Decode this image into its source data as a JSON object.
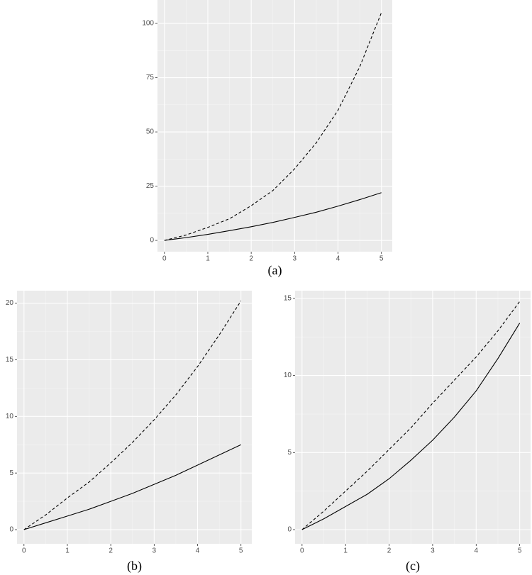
{
  "chart_data": [
    {
      "type": "line",
      "caption": "(a)",
      "x": [
        0,
        0.5,
        1,
        1.5,
        2,
        2.5,
        3,
        3.5,
        4,
        4.5,
        5
      ],
      "series": [
        {
          "color": "#000000",
          "linestyle": "dashed",
          "values": [
            0,
            2.5,
            6,
            10,
            16,
            23,
            33,
            45,
            60,
            80,
            105
          ]
        },
        {
          "color": "#000000",
          "linestyle": "solid",
          "values": [
            0,
            1.3,
            2.8,
            4.5,
            6.3,
            8.3,
            10.6,
            13,
            15.8,
            18.8,
            22
          ]
        }
      ],
      "xlim": [
        -0.16,
        5.25
      ],
      "xticks": [
        0,
        1,
        2,
        3,
        4,
        5
      ],
      "ylim": [
        -5.2,
        110.8
      ],
      "yticks": [
        0,
        25,
        50,
        75,
        100
      ],
      "grid": true
    },
    {
      "type": "line",
      "caption": "(b)",
      "x": [
        0,
        0.5,
        1,
        1.5,
        2,
        2.5,
        3,
        3.5,
        4,
        4.5,
        5
      ],
      "series": [
        {
          "color": "#000000",
          "linestyle": "dashed",
          "values": [
            0,
            1.3,
            2.8,
            4.2,
            5.9,
            7.7,
            9.7,
            11.9,
            14.4,
            17.2,
            20.2
          ]
        },
        {
          "color": "#000000",
          "linestyle": "solid",
          "values": [
            0,
            0.6,
            1.2,
            1.8,
            2.5,
            3.2,
            4.0,
            4.8,
            5.7,
            6.6,
            7.5
          ]
        }
      ],
      "xlim": [
        -0.16,
        5.25
      ],
      "xticks": [
        0,
        1,
        2,
        3,
        4,
        5
      ],
      "ylim": [
        -1.25,
        21.1
      ],
      "yticks": [
        0,
        5,
        10,
        15,
        20
      ],
      "grid": true
    },
    {
      "type": "line",
      "caption": "(c)",
      "x": [
        0,
        0.5,
        1,
        1.5,
        2,
        2.5,
        3,
        3.5,
        4,
        4.5,
        5
      ],
      "series": [
        {
          "color": "#000000",
          "linestyle": "dashed",
          "values": [
            0,
            1.2,
            2.5,
            3.8,
            5.2,
            6.6,
            8.2,
            9.7,
            11.2,
            12.9,
            14.8
          ]
        },
        {
          "color": "#000000",
          "linestyle": "solid",
          "values": [
            0,
            0.7,
            1.5,
            2.3,
            3.3,
            4.5,
            5.8,
            7.3,
            9.0,
            11.1,
            13.4
          ]
        }
      ],
      "xlim": [
        -0.16,
        5.25
      ],
      "xticks": [
        0,
        1,
        2,
        3,
        4,
        5
      ],
      "ylim": [
        -0.92,
        15.5
      ],
      "yticks": [
        0,
        5,
        10,
        15
      ],
      "grid": true
    }
  ]
}
